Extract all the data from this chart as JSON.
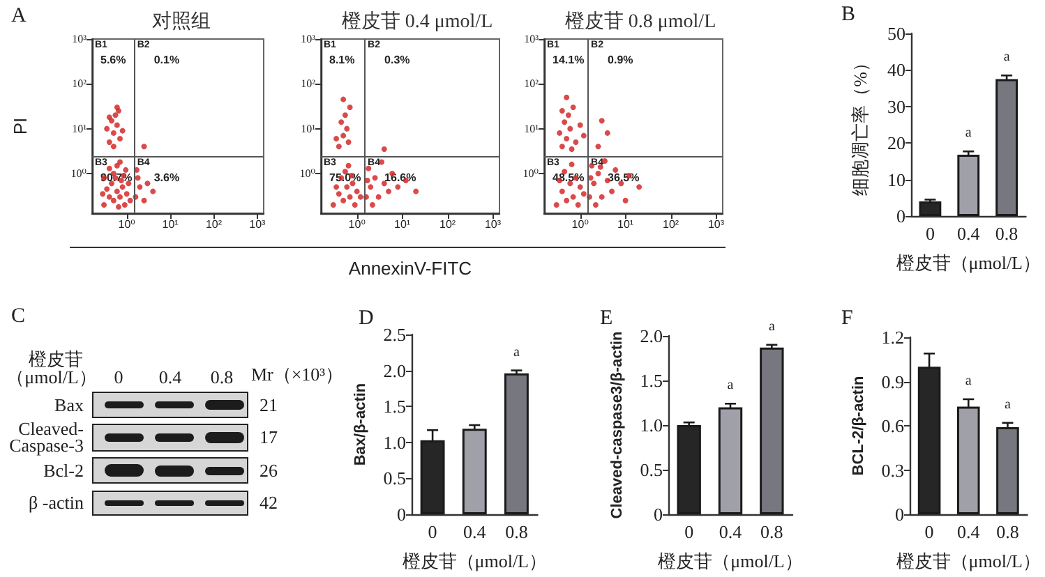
{
  "chart_data": [
    {
      "type": "scatter",
      "title": "对照组",
      "ylabel": "PI",
      "marker": "circle",
      "log": "xy",
      "xlim": [
        0.16,
        1400
      ],
      "ylim": [
        0.13,
        1000
      ],
      "xticks": [
        {
          "value": 1,
          "label": "10⁰"
        },
        {
          "value": 10,
          "label": "10¹"
        },
        {
          "value": 100,
          "label": "10²"
        },
        {
          "value": 1000,
          "label": "10³"
        }
      ],
      "yticks": [
        {
          "value": 1,
          "label": "10⁰"
        },
        {
          "value": 10,
          "label": "10¹"
        },
        {
          "value": 100,
          "label": "10²"
        },
        {
          "value": 1000,
          "label": "10³"
        }
      ],
      "ref_lines": [
        {
          "axis": "x",
          "value": 1.5,
          "color": "#555555"
        },
        {
          "axis": "y",
          "value": 2.4,
          "color": "#555555"
        }
      ],
      "annotations": [
        "A",
        "B1",
        "5.6%",
        "B2",
        "0.1%",
        "B3",
        "90.7%",
        "B4",
        "3.6%"
      ],
      "series": [
        {
          "color": "#d42a2a",
          "x": [
            0.3,
            0.4,
            0.5,
            0.6,
            0.7,
            0.8,
            0.45,
            0.55,
            0.35,
            0.9,
            1.0,
            0.65,
            0.75,
            0.5,
            0.4,
            0.3,
            1.1,
            0.85,
            0.6,
            0.28,
            1.2,
            0.95,
            0.7,
            0.4,
            0.5,
            0.6,
            0.45,
            0.55,
            0.7,
            0.35,
            0.65,
            0.5,
            0.8,
            0.6,
            0.4,
            1.6,
            2,
            1.8,
            2.5,
            3,
            1.7,
            4,
            2.5
          ],
          "values": [
            0.2,
            0.3,
            0.25,
            0.4,
            0.3,
            0.5,
            0.6,
            0.8,
            0.45,
            0.2,
            0.35,
            0.18,
            0.7,
            1.0,
            1.3,
            0.8,
            0.6,
            0.9,
            1.5,
            0.35,
            0.25,
            1.2,
            1.8,
            5,
            8,
            12,
            15,
            20,
            6,
            10,
            25,
            4,
            9,
            30,
            18,
            0.3,
            0.5,
            0.8,
            0.25,
            0.6,
            1.2,
            0.4,
            4
          ]
        }
      ]
    },
    {
      "type": "scatter",
      "title": "橙皮苷 0.4 μmol/L",
      "xlabel": "AnnexinV-FITC",
      "marker": "circle",
      "log": "xy",
      "xlim": [
        0.16,
        1400
      ],
      "ylim": [
        0.13,
        1000
      ],
      "xticks": [
        {
          "value": 1,
          "label": "10⁰"
        },
        {
          "value": 10,
          "label": "10¹"
        },
        {
          "value": 100,
          "label": "10²"
        },
        {
          "value": 1000,
          "label": "10³"
        }
      ],
      "yticks": [
        {
          "value": 1,
          "label": "10⁰"
        },
        {
          "value": 10,
          "label": "10¹"
        },
        {
          "value": 100,
          "label": "10²"
        },
        {
          "value": 1000,
          "label": "10³"
        }
      ],
      "ref_lines": [
        {
          "axis": "x",
          "value": 1.5,
          "color": "#555555"
        },
        {
          "axis": "y",
          "value": 2.4,
          "color": "#555555"
        }
      ],
      "annotations": [
        "B1",
        "8.1%",
        "B2",
        "0.3%",
        "B3",
        "75.0%",
        "B4",
        "16.6%"
      ],
      "series": [
        {
          "color": "#d42a2a",
          "x": [
            0.3,
            0.4,
            0.5,
            0.6,
            0.7,
            0.8,
            0.45,
            0.55,
            0.9,
            1.0,
            0.65,
            1.2,
            0.35,
            0.75,
            0.4,
            0.5,
            0.6,
            0.45,
            0.55,
            0.35,
            0.7,
            0.5,
            0.65,
            1.6,
            2,
            2.5,
            3,
            4,
            5,
            1.8,
            6,
            3.5,
            8,
            2.2,
            12,
            20,
            1.7,
            4
          ],
          "values": [
            0.2,
            0.35,
            0.25,
            0.5,
            0.3,
            0.6,
            0.8,
            1.1,
            0.2,
            0.4,
            1.5,
            0.3,
            0.5,
            0.9,
            4,
            7,
            10,
            14,
            20,
            6,
            30,
            45,
            5,
            0.3,
            0.5,
            0.8,
            0.3,
            0.6,
            0.4,
            1.3,
            1,
            1.8,
            0.5,
            0.2,
            0.7,
            0.4,
            0.7,
            3.5
          ]
        }
      ]
    },
    {
      "type": "scatter",
      "title": "橙皮苷 0.8 μmol/L",
      "marker": "circle",
      "log": "xy",
      "xlim": [
        0.16,
        1400
      ],
      "ylim": [
        0.13,
        1000
      ],
      "xticks": [
        {
          "value": 1,
          "label": "10⁰"
        },
        {
          "value": 10,
          "label": "10¹"
        },
        {
          "value": 100,
          "label": "10²"
        },
        {
          "value": 1000,
          "label": "10³"
        }
      ],
      "yticks": [
        {
          "value": 1,
          "label": "10⁰"
        },
        {
          "value": 10,
          "label": "10¹"
        },
        {
          "value": 100,
          "label": "10²"
        },
        {
          "value": 1000,
          "label": "10³"
        }
      ],
      "ref_lines": [
        {
          "axis": "x",
          "value": 1.5,
          "color": "#555555"
        },
        {
          "axis": "y",
          "value": 2.4,
          "color": "#555555"
        }
      ],
      "annotations": [
        "B1",
        "14.1%",
        "B2",
        "0.9%",
        "B3",
        "48.5%",
        "B4",
        "36.5%"
      ],
      "series": [
        {
          "color": "#d42a2a",
          "x": [
            0.3,
            0.4,
            0.5,
            0.6,
            0.7,
            0.8,
            0.45,
            0.9,
            1.0,
            1.2,
            0.35,
            0.65,
            0.4,
            0.5,
            0.6,
            0.45,
            0.55,
            0.35,
            0.7,
            0.5,
            0.8,
            1.0,
            0.65,
            1.2,
            0.4,
            1.6,
            2,
            2.5,
            3,
            4,
            5,
            1.8,
            6,
            3.5,
            8,
            2.2,
            12,
            20,
            1.7,
            2.8,
            10,
            2.5,
            4,
            3
          ],
          "values": [
            0.2,
            0.4,
            0.25,
            0.6,
            0.3,
            0.8,
            1.1,
            0.2,
            0.5,
            0.35,
            0.7,
            1.6,
            4,
            6,
            10,
            14,
            20,
            8,
            30,
            50,
            5,
            12,
            3.5,
            7,
            25,
            0.3,
            0.6,
            1.0,
            0.3,
            0.7,
            0.4,
            1.5,
            1.2,
            1.9,
            0.6,
            0.2,
            0.9,
            0.5,
            0.8,
            1.4,
            0.25,
            4,
            8,
            15
          ]
        }
      ]
    },
    {
      "type": "bar",
      "ylabel": "细胞凋亡率（%）",
      "xlabel": "橙皮苷（μmol/L）",
      "categories": [
        "0",
        "0.4",
        "0.8"
      ],
      "values": [
        4,
        16.8,
        37.5
      ],
      "errors": [
        0.5,
        0.9,
        1.0
      ],
      "colors": [
        "#262626",
        "#a0a0a8",
        "#77777f"
      ],
      "ylim": [
        0,
        50
      ],
      "yticks": [
        0,
        10,
        20,
        30,
        40,
        50
      ],
      "annotations": [
        "B",
        {
          "text": "a",
          "x": "0.4",
          "y": 16.8
        },
        {
          "text": "a",
          "x": "0.8",
          "y": 37.5
        }
      ]
    },
    {
      "type": "other",
      "annotations": [
        "C",
        "橙皮苷",
        "（μmol/L）",
        "0",
        "0.4",
        "0.8",
        "Mr（×10³）",
        "Bax",
        "21",
        "Cleaved-\nCaspase-3",
        "17",
        "Bcl-2",
        "26",
        "β -actin",
        "42"
      ]
    },
    {
      "type": "bar",
      "ylabel": "Bax/β-actin",
      "xlabel": "橙皮苷（μmol/L）",
      "categories": [
        "0",
        "0.4",
        "0.8"
      ],
      "values": [
        1.03,
        1.19,
        1.96
      ],
      "errors": [
        0.14,
        0.05,
        0.04
      ],
      "colors": [
        "#262626",
        "#a0a0a8",
        "#77777f"
      ],
      "ylim": [
        0,
        2.5
      ],
      "yticks": [
        0,
        0.5,
        {
          "value": 1,
          "label": "1.0"
        },
        1.5,
        {
          "value": 2,
          "label": "2.0"
        },
        2.5
      ],
      "annotations": [
        "D",
        {
          "text": "a",
          "x": "0.8",
          "y": 1.96
        }
      ]
    },
    {
      "type": "bar",
      "ylabel": "Cleaved-caspase3/β-actin",
      "xlabel": "橙皮苷（μmol/L）",
      "categories": [
        "0",
        "0.4",
        "0.8"
      ],
      "values": [
        1.0,
        1.2,
        1.87
      ],
      "errors": [
        0.03,
        0.04,
        0.03
      ],
      "colors": [
        "#262626",
        "#a0a0a8",
        "#77777f"
      ],
      "ylim": [
        0,
        2.0
      ],
      "yticks": [
        0,
        0.5,
        {
          "value": 1,
          "label": "1.0"
        },
        1.5,
        {
          "value": 2,
          "label": "2.0"
        }
      ],
      "annotations": [
        "E",
        {
          "text": "a",
          "x": "0.4",
          "y": 1.2
        },
        {
          "text": "a",
          "x": "0.8",
          "y": 1.87
        }
      ]
    },
    {
      "type": "bar",
      "ylabel": "BCL-2/β-actin",
      "xlabel": "橙皮苷（μmol/L）",
      "categories": [
        "0",
        "0.4",
        "0.8"
      ],
      "values": [
        1.0,
        0.73,
        0.59
      ],
      "errors": [
        0.09,
        0.05,
        0.03
      ],
      "colors": [
        "#262626",
        "#a0a0a8",
        "#77777f"
      ],
      "ylim": [
        0,
        1.2
      ],
      "yticks": [
        0,
        0.3,
        0.6,
        0.9,
        1.2
      ],
      "annotations": [
        "F",
        {
          "text": "a",
          "x": "0.4",
          "y": 0.73
        },
        {
          "text": "a",
          "x": "0.8",
          "y": 0.59
        }
      ]
    }
  ]
}
